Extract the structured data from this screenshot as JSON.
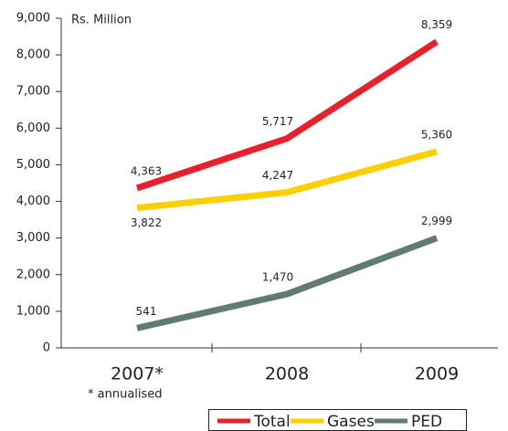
{
  "chart_data": {
    "type": "line",
    "unit_label": "Rs. Million",
    "note": "* annualised",
    "categories": [
      "2007*",
      "2008",
      "2009"
    ],
    "series": [
      {
        "name": "Total",
        "color": "#e8202a",
        "values": [
          4363,
          5717,
          8359
        ],
        "value_labels": [
          "4,363",
          "5,717",
          "8,359"
        ]
      },
      {
        "name": "Gases",
        "color": "#fccf00",
        "values": [
          3822,
          4247,
          5360
        ],
        "value_labels": [
          "3,822",
          "4,247",
          "5,360"
        ]
      },
      {
        "name": "PED",
        "color": "#5f7b73",
        "values": [
          541,
          1470,
          2999
        ],
        "value_labels": [
          "541",
          "1,470",
          "2,999"
        ]
      }
    ],
    "ylim": [
      0,
      9000
    ],
    "yticks": [
      0,
      {
        "value": 1000,
        "label": "1,000"
      },
      {
        "value": 2000,
        "label": "2,000"
      },
      {
        "value": 3000,
        "label": "3,000"
      },
      {
        "value": 4000,
        "label": "4,000"
      },
      {
        "value": 5000,
        "label": "5,000"
      },
      {
        "value": 6000,
        "label": "6,000"
      },
      {
        "value": 7000,
        "label": "7,000"
      },
      {
        "value": 8000,
        "label": "8,000"
      },
      {
        "value": 9000,
        "label": "9,000"
      }
    ],
    "legend": "bottom-right"
  }
}
